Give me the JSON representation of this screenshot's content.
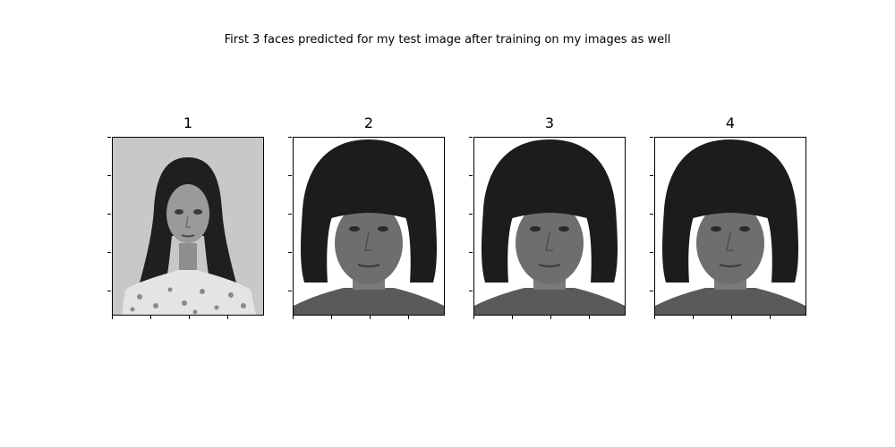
{
  "figure": {
    "suptitle": "First 3 faces predicted for my test image after training on my images as well",
    "panels": [
      {
        "title": "1",
        "image": "grayscale portrait of a young woman with long dark hair and floral top on light gray background"
      },
      {
        "title": "2",
        "image": "grayscale portrait of a woman with dark bob haircut and bangs"
      },
      {
        "title": "3",
        "image": "grayscale portrait of a woman with dark bob haircut and bangs"
      },
      {
        "title": "4",
        "image": "grayscale portrait of a woman with dark bob haircut and bangs"
      }
    ]
  }
}
